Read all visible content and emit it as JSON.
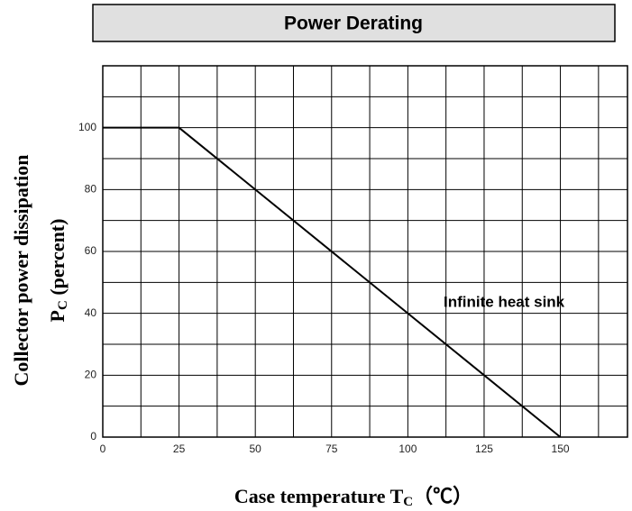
{
  "chart_data": {
    "type": "line",
    "title": "Power Derating",
    "xlabel": [
      "Case temperature T",
      "C",
      "（℃）"
    ],
    "ylabel": [
      "Collector power dissipation",
      "P",
      "C",
      " (percent)"
    ],
    "x": [
      0,
      25,
      150
    ],
    "series": [
      {
        "name": "Infinite heat sink",
        "color": "#000000",
        "values": [
          100,
          100,
          0
        ]
      }
    ],
    "xlim": [
      0,
      172
    ],
    "ylim": [
      0,
      120
    ],
    "xticks": [
      0,
      25,
      50,
      75,
      100,
      125,
      150
    ],
    "yticks": [
      0,
      20,
      40,
      60,
      80,
      100
    ],
    "xgrid": [
      12.5,
      37.5,
      62.5,
      87.5,
      112.5,
      137.5,
      162.5
    ],
    "ygrid": [
      10,
      30,
      50,
      70,
      90,
      110
    ],
    "grid": true
  }
}
